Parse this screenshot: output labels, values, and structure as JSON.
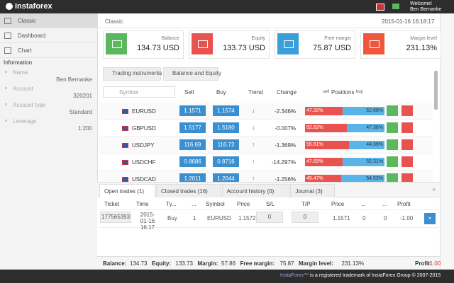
{
  "header": {
    "logo": "instaforex",
    "welcome": "Welcome!",
    "user": "Ben Bernanke"
  },
  "sidebar": {
    "menu": [
      "Classic",
      "Dashboard",
      "Chart"
    ],
    "info_title": "Information",
    "fields": [
      {
        "label": "Name",
        "value": "Ben Bernanke"
      },
      {
        "label": "Account",
        "value": "320201"
      },
      {
        "label": "Account type",
        "value": "Standard"
      },
      {
        "label": "Leverage",
        "value": "1:200"
      }
    ]
  },
  "breadcrumb": "Classic",
  "datetime": "2015-01-16 16:18:17",
  "cards": [
    {
      "label": "Balance",
      "value": "134.73 USD",
      "color": "#5cb85c"
    },
    {
      "label": "Equity",
      "value": "133.73 USD",
      "color": "#e9534f"
    },
    {
      "label": "Free margin",
      "value": "75.87 USD",
      "color": "#3a9fd9"
    },
    {
      "label": "Margin level",
      "value": "231.13%",
      "color": "#f0563c"
    }
  ],
  "tabs": [
    "Trading instruments",
    "Balance and Equity"
  ],
  "instruments": {
    "columns": [
      "Symbol",
      "Sell",
      "Buy",
      "Trend",
      "Change"
    ],
    "positions_sell": "sell",
    "positions_title": "Positions",
    "positions_buy": "buy",
    "rows": [
      {
        "symbol": "EURUSD",
        "sell": "1.1571",
        "buy": "1.1574",
        "trend": "down",
        "change": "-2.346%",
        "sell_share": {
          "value": 47.32,
          "label": "47.32%"
        },
        "buy_share": {
          "value": 52.68,
          "label": "52.68%"
        }
      },
      {
        "symbol": "GBPUSD",
        "sell": "1.5177",
        "buy": "1.5180",
        "trend": "down",
        "change": "-0.007%",
        "sell_share": {
          "value": 52.62,
          "label": "52.62%"
        },
        "buy_share": {
          "value": 47.38,
          "label": "47.38%"
        }
      },
      {
        "symbol": "USDJPY",
        "sell": "116.69",
        "buy": "116.72",
        "trend": "up",
        "change": "-1.369%",
        "sell_share": {
          "value": 55.61,
          "label": "55.61%"
        },
        "buy_share": {
          "value": 44.39,
          "label": "44.39%"
        }
      },
      {
        "symbol": "USDCHF",
        "sell": "0.8686",
        "buy": "0.8716",
        "trend": "up",
        "change": "-14.297%",
        "sell_share": {
          "value": 47.69,
          "label": "47.69%"
        },
        "buy_share": {
          "value": 52.31,
          "label": "52.31%"
        }
      },
      {
        "symbol": "USDCAD",
        "sell": "1.2011",
        "buy": "1.2044",
        "trend": "up",
        "change": "-1.256%",
        "sell_share": {
          "value": 45.47,
          "label": "45.47%"
        },
        "buy_share": {
          "value": 54.53,
          "label": "54.53%"
        }
      }
    ]
  },
  "bottom": {
    "tabs": [
      "Open trades (1)",
      "Closed trades (16)",
      "Account history (0)",
      "Journal (3)"
    ],
    "columns": [
      "Ticket",
      "Time",
      "Ty...",
      "...",
      "Symbol",
      "Price",
      "S/L",
      "T/P",
      "Price",
      "...",
      "...",
      "Profit"
    ],
    "rows": [
      [
        "177565393",
        "2015-01-16 16:17",
        "Buy",
        "1",
        "EURUSD",
        "1.1572",
        "0",
        "0",
        "1.1571",
        "0",
        "0",
        "-1.00"
      ]
    ]
  },
  "status": {
    "items": [
      {
        "label": "Balance:",
        "value": "134.73"
      },
      {
        "label": "Equity:",
        "value": "133.73"
      },
      {
        "label": "Margin:",
        "value": "57.86"
      },
      {
        "label": "Free margin:",
        "value": "75.87"
      },
      {
        "label": "Margin level:",
        "value": "231.13%"
      }
    ],
    "profit_label": "Profit:",
    "profit": "-1.00"
  },
  "footer": {
    "brand": "InstaForex™",
    "text": "is a registered trademark of InstaForex Group © 2007-2015"
  }
}
